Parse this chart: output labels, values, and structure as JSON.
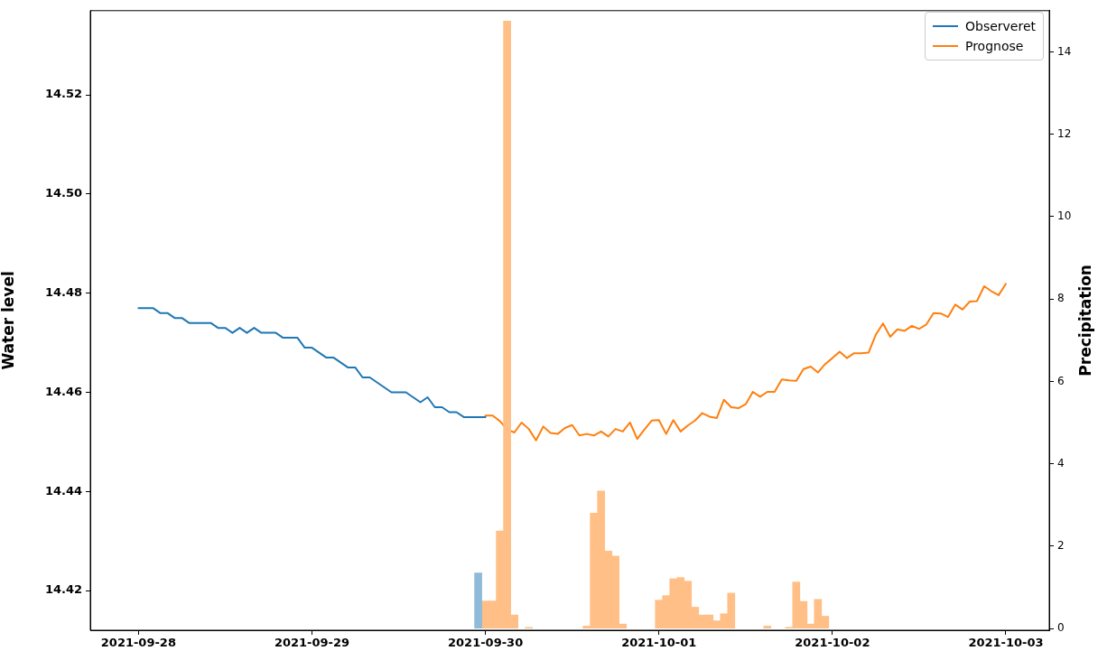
{
  "chart_data": {
    "type": "line",
    "ylabel": "Water level",
    "y2label": "Precipitation",
    "xlim": [
      "2021-09-27T17:20",
      "2021-10-03T06:00"
    ],
    "xticks": [
      "2021-09-28",
      "2021-09-29",
      "2021-09-30",
      "2021-10-01",
      "2021-10-02",
      "2021-10-03"
    ],
    "ylim": [
      14.412,
      14.537
    ],
    "yticks": [
      14.42,
      14.44,
      14.46,
      14.48,
      {
        "value": 14.5,
        "label": "14.50"
      },
      14.52
    ],
    "y2lim": [
      -0.04,
      15.0
    ],
    "y2ticks": [
      0,
      2,
      4,
      6,
      8,
      10,
      12,
      14
    ],
    "legend": "top right",
    "series": [
      {
        "name": "Observeret",
        "color": "#1f77b4",
        "x": [
          "2021-09-28T00:00",
          "2021-09-28T01:00",
          "2021-09-28T02:00",
          "2021-09-28T03:00",
          "2021-09-28T04:00",
          "2021-09-28T05:00",
          "2021-09-28T06:00",
          "2021-09-28T07:00",
          "2021-09-28T08:00",
          "2021-09-28T09:00",
          "2021-09-28T10:00",
          "2021-09-28T11:00",
          "2021-09-28T12:00",
          "2021-09-28T13:00",
          "2021-09-28T14:00",
          "2021-09-28T15:00",
          "2021-09-28T16:00",
          "2021-09-28T17:00",
          "2021-09-28T18:00",
          "2021-09-28T19:00",
          "2021-09-28T20:00",
          "2021-09-28T21:00",
          "2021-09-28T22:00",
          "2021-09-28T23:00",
          "2021-09-29T00:00",
          "2021-09-29T01:00",
          "2021-09-29T02:00",
          "2021-09-29T03:00",
          "2021-09-29T04:00",
          "2021-09-29T05:00",
          "2021-09-29T06:00",
          "2021-09-29T07:00",
          "2021-09-29T08:00",
          "2021-09-29T09:00",
          "2021-09-29T10:00",
          "2021-09-29T11:00",
          "2021-09-29T12:00",
          "2021-09-29T13:00",
          "2021-09-29T14:00",
          "2021-09-29T15:00",
          "2021-09-29T16:00",
          "2021-09-29T17:00",
          "2021-09-29T18:00",
          "2021-09-29T19:00",
          "2021-09-29T20:00",
          "2021-09-29T21:00",
          "2021-09-29T22:00",
          "2021-09-29T23:00",
          "2021-09-30T00:00"
        ],
        "values": [
          14.477,
          14.477,
          14.477,
          14.476,
          14.476,
          14.475,
          14.475,
          14.474,
          14.474,
          14.474,
          14.474,
          14.473,
          14.473,
          14.472,
          14.473,
          14.472,
          14.473,
          14.472,
          14.472,
          14.472,
          14.471,
          14.471,
          14.471,
          14.469,
          14.469,
          14.468,
          14.467,
          14.467,
          14.466,
          14.465,
          14.465,
          14.463,
          14.463,
          14.462,
          14.461,
          14.46,
          14.46,
          14.46,
          14.459,
          14.458,
          14.459,
          14.457,
          14.457,
          14.456,
          14.456,
          14.455,
          14.455,
          14.455,
          14.455
        ]
      },
      {
        "name": "Prognose",
        "color": "#ff7f0e",
        "x": [
          "2021-09-30T00:00",
          "2021-09-30T01:00",
          "2021-09-30T02:00",
          "2021-09-30T03:00",
          "2021-09-30T04:00",
          "2021-09-30T05:00",
          "2021-09-30T06:00",
          "2021-09-30T07:00",
          "2021-09-30T08:00",
          "2021-09-30T09:00",
          "2021-09-30T10:00",
          "2021-09-30T11:00",
          "2021-09-30T12:00",
          "2021-09-30T13:00",
          "2021-09-30T14:00",
          "2021-09-30T15:00",
          "2021-09-30T16:00",
          "2021-09-30T17:00",
          "2021-09-30T18:00",
          "2021-09-30T19:00",
          "2021-09-30T20:00",
          "2021-09-30T21:00",
          "2021-09-30T22:00",
          "2021-09-30T23:00",
          "2021-10-01T00:00",
          "2021-10-01T01:00",
          "2021-10-01T02:00",
          "2021-10-01T03:00",
          "2021-10-01T04:00",
          "2021-10-01T05:00",
          "2021-10-01T06:00",
          "2021-10-01T07:00",
          "2021-10-01T08:00",
          "2021-10-01T09:00",
          "2021-10-01T10:00",
          "2021-10-01T11:00",
          "2021-10-01T12:00",
          "2021-10-01T13:00",
          "2021-10-01T14:00",
          "2021-10-01T15:00",
          "2021-10-01T16:00",
          "2021-10-01T17:00",
          "2021-10-01T18:00",
          "2021-10-01T19:00",
          "2021-10-01T20:00",
          "2021-10-01T21:00",
          "2021-10-01T22:00",
          "2021-10-01T23:00",
          "2021-10-02T00:00",
          "2021-10-02T01:00",
          "2021-10-02T02:00",
          "2021-10-02T03:00",
          "2021-10-02T04:00",
          "2021-10-02T05:00",
          "2021-10-02T06:00",
          "2021-10-02T07:00",
          "2021-10-02T08:00",
          "2021-10-02T09:00",
          "2021-10-02T10:00",
          "2021-10-02T11:00",
          "2021-10-02T12:00",
          "2021-10-02T13:00",
          "2021-10-02T14:00",
          "2021-10-02T15:00",
          "2021-10-02T16:00",
          "2021-10-02T17:00",
          "2021-10-02T18:00",
          "2021-10-02T19:00",
          "2021-10-02T20:00",
          "2021-10-02T21:00",
          "2021-10-02T22:00",
          "2021-10-02T23:00",
          "2021-10-03T00:00"
        ],
        "values": [
          14.4553,
          14.4553,
          14.4542,
          14.4525,
          14.4519,
          14.4539,
          14.4526,
          14.4503,
          14.4531,
          14.4518,
          14.4516,
          14.4528,
          14.4534,
          14.4513,
          14.4516,
          14.4513,
          14.4521,
          14.4511,
          14.4526,
          14.4521,
          14.4539,
          14.4506,
          14.4525,
          14.4543,
          14.4544,
          14.4516,
          14.4544,
          14.4521,
          14.4533,
          14.4543,
          14.4558,
          14.4551,
          14.4548,
          14.4585,
          14.457,
          14.4568,
          14.4576,
          14.4601,
          14.4591,
          14.4601,
          14.4601,
          14.4626,
          14.4624,
          14.4623,
          14.4647,
          14.4652,
          14.464,
          14.4657,
          14.4669,
          14.4682,
          14.4669,
          14.4679,
          14.4679,
          14.468,
          14.4716,
          14.4739,
          14.4712,
          14.4727,
          14.4724,
          14.4734,
          14.4728,
          14.4737,
          14.476,
          14.4759,
          14.4752,
          14.4777,
          14.4767,
          14.4783,
          14.4784,
          14.4814,
          14.4804,
          14.4796,
          14.4819
        ]
      },
      {
        "type": "bar",
        "axis": "y2",
        "color": "#8fbbd9",
        "x": [
          "2021-09-29T23:00"
        ],
        "values": [
          1.35
        ]
      },
      {
        "type": "bar",
        "axis": "y2",
        "color": "#ffbf86",
        "x": [
          "2021-09-30T00:00",
          "2021-09-30T01:00",
          "2021-09-30T02:00",
          "2021-09-30T03:00",
          "2021-09-30T04:00",
          "2021-09-30T06:00",
          "2021-09-30T14:00",
          "2021-09-30T15:00",
          "2021-09-30T16:00",
          "2021-09-30T17:00",
          "2021-09-30T18:00",
          "2021-09-30T19:00",
          "2021-10-01T00:00",
          "2021-10-01T01:00",
          "2021-10-01T02:00",
          "2021-10-01T03:00",
          "2021-10-01T04:00",
          "2021-10-01T05:00",
          "2021-10-01T06:00",
          "2021-10-01T07:00",
          "2021-10-01T08:00",
          "2021-10-01T09:00",
          "2021-10-01T10:00",
          "2021-10-01T15:00",
          "2021-10-01T18:00",
          "2021-10-01T19:00",
          "2021-10-01T20:00",
          "2021-10-01T21:00",
          "2021-10-01T22:00",
          "2021-10-01T23:00"
        ],
        "values": [
          0.67,
          0.67,
          2.37,
          14.75,
          0.33,
          0.03,
          0.06,
          2.8,
          3.34,
          1.88,
          1.76,
          0.11,
          0.69,
          0.8,
          1.21,
          1.24,
          1.15,
          0.52,
          0.33,
          0.33,
          0.19,
          0.36,
          0.86,
          0.06,
          0.03,
          1.13,
          0.66,
          0.11,
          0.71,
          0.3
        ]
      }
    ]
  }
}
